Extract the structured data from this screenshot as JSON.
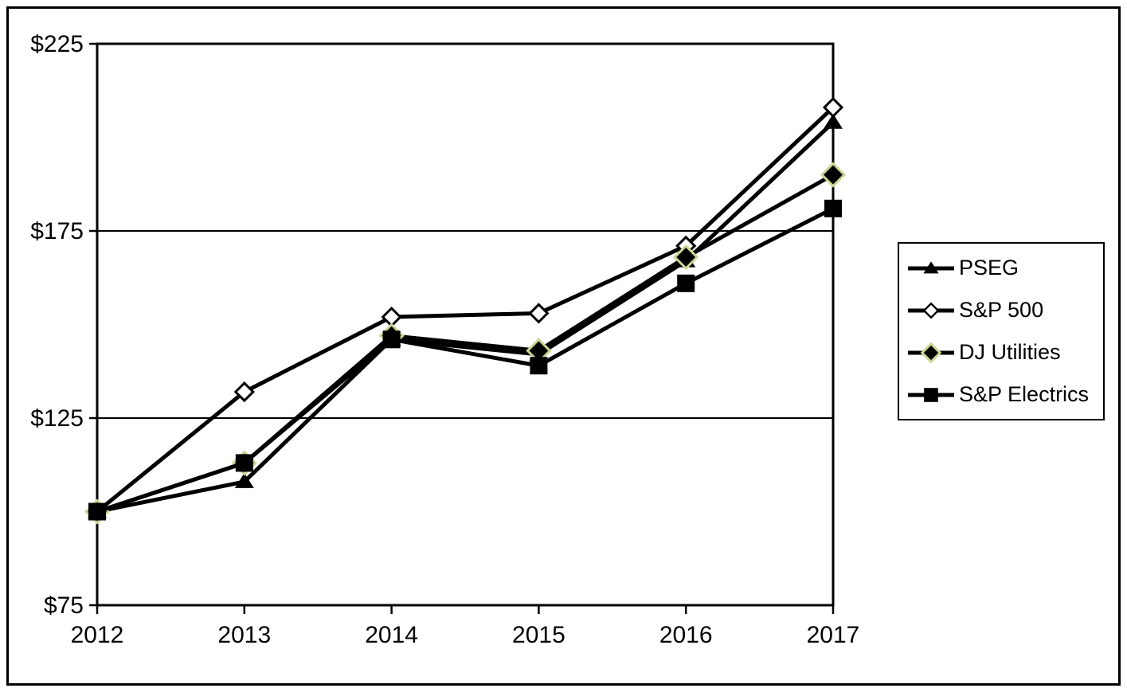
{
  "chart_data": {
    "type": "line",
    "title": "",
    "xlabel": "",
    "ylabel": "",
    "x_labels": [
      "2012",
      "2013",
      "2014",
      "2015",
      "2016",
      "2017"
    ],
    "series": [
      {
        "name": "PSEG",
        "marker": "filled-triangle",
        "values": [
          100,
          108,
          146,
          142,
          167,
          204
        ]
      },
      {
        "name": "S&P 500",
        "marker": "open-diamond",
        "values": [
          100,
          132,
          152,
          153,
          171,
          208
        ]
      },
      {
        "name": "DJ Utilities",
        "marker": "filled-diamond-green-outline",
        "values": [
          100,
          113,
          147,
          143,
          168,
          190
        ]
      },
      {
        "name": "S&P Electrics",
        "marker": "filled-square",
        "values": [
          100,
          113,
          146,
          139,
          161,
          181
        ]
      }
    ],
    "ylim": [
      75,
      225
    ],
    "yticks": [
      {
        "value": 225,
        "label": "$225"
      },
      {
        "value": 175,
        "label": "$175"
      },
      {
        "value": 125,
        "label": "$125"
      },
      {
        "value": 75,
        "label": "$75"
      }
    ],
    "grid": "horizontal",
    "legend_position": "right",
    "colors": {
      "line": "#000000",
      "marker_fill": "#000000",
      "open_marker_fill": "#ffffff",
      "dj_marker_outline": "#c9d694",
      "background": "#ffffff"
    }
  }
}
